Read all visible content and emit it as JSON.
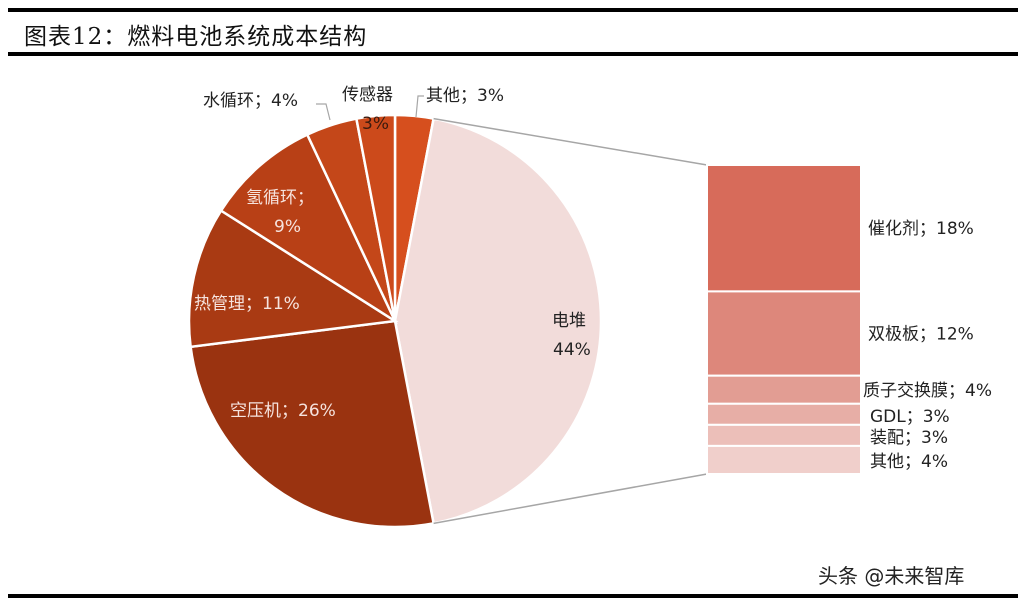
{
  "header": {
    "title": "图表12：燃料电池系统成本结构"
  },
  "watermark": "头条 @未来智库",
  "chart_data": {
    "type": "pie",
    "subtype": "bar-of-pie",
    "title": "燃料电池系统成本结构",
    "pie": {
      "center": [
        395,
        321
      ],
      "radius": 206,
      "start_order_clockwise_from_top": true,
      "slices": [
        {
          "name": "其他",
          "value": 3,
          "label": "其他；3%",
          "color": "#D64F1E"
        },
        {
          "name": "电堆",
          "value": 44,
          "label_line1": "电堆",
          "label_line2": "44%",
          "color": "#F2DCDA"
        },
        {
          "name": "空压机",
          "value": 26,
          "label": "空压机；26%",
          "color": "#9A3310"
        },
        {
          "name": "热管理",
          "value": 11,
          "label": "热管理；11%",
          "color": "#A93A13"
        },
        {
          "name": "氢循环",
          "value": 9,
          "label_line1": "氢循环；",
          "label_line2": "9%",
          "color": "#B84016"
        },
        {
          "name": "水循环",
          "value": 4,
          "label": "水循环；4%",
          "color": "#C44719"
        },
        {
          "name": "传感器",
          "value": 3,
          "label_line1": "传感器",
          "label_line2": "3%",
          "color": "#CC4A1B"
        }
      ]
    },
    "breakdown": {
      "of": "电堆",
      "items": [
        {
          "name": "催化剂",
          "value": 18,
          "label": "催化剂；18%",
          "color": "#D76B5A"
        },
        {
          "name": "双极板",
          "value": 12,
          "label": "双极板；12%",
          "color": "#DD877B"
        },
        {
          "name": "质子交换膜",
          "value": 4,
          "label": "质子交换膜；4%",
          "color": "#E29D93"
        },
        {
          "name": "GDL",
          "value": 3,
          "label": "GDL；3%",
          "color": "#E7AEA6"
        },
        {
          "name": "装配",
          "value": 3,
          "label": "装配；3%",
          "color": "#ECBFB9"
        },
        {
          "name": "其他",
          "value": 4,
          "label": "其他；4%",
          "color": "#F0CFCB"
        }
      ]
    },
    "legend": "none",
    "grid": false
  }
}
